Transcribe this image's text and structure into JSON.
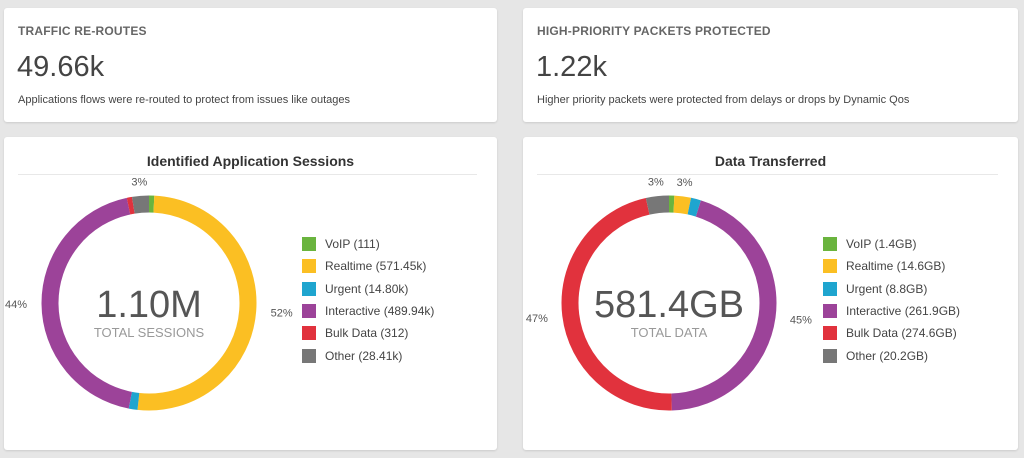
{
  "kpis": [
    {
      "title": "TRAFFIC RE-ROUTES",
      "value": "49.66k",
      "description": "Applications flows were re-routed to protect from issues like outages"
    },
    {
      "title": "HIGH-PRIORITY PACKETS PROTECTED",
      "value": "1.22k",
      "description": "Higher priority packets were protected from delays or drops by Dynamic Qos"
    }
  ],
  "colors": {
    "voip": "#6ab43e",
    "realtime": "#fbbf23",
    "urgent": "#1fa5cf",
    "interactive": "#9c4399",
    "bulk": "#e1323d",
    "other": "#777777"
  },
  "sessions": {
    "title": "Identified Application Sessions",
    "center_value": "1.10M",
    "center_label": "TOTAL SESSIONS",
    "legend": [
      {
        "label": "VoIP (111)",
        "color": "#6ab43e"
      },
      {
        "label": "Realtime (571.45k)",
        "color": "#fbbf23"
      },
      {
        "label": "Urgent (14.80k)",
        "color": "#1fa5cf"
      },
      {
        "label": "Interactive (489.94k)",
        "color": "#9c4399"
      },
      {
        "label": "Bulk Data (312)",
        "color": "#e1323d"
      },
      {
        "label": "Other (28.41k)",
        "color": "#777777"
      }
    ]
  },
  "data_transferred": {
    "title": "Data Transferred",
    "center_value": "581.4GB",
    "center_label": "TOTAL DATA",
    "legend": [
      {
        "label": "VoIP (1.4GB)",
        "color": "#6ab43e"
      },
      {
        "label": "Realtime (14.6GB)",
        "color": "#fbbf23"
      },
      {
        "label": "Urgent (8.8GB)",
        "color": "#1fa5cf"
      },
      {
        "label": "Interactive (261.9GB)",
        "color": "#9c4399"
      },
      {
        "label": "Bulk Data (274.6GB)",
        "color": "#e1323d"
      },
      {
        "label": "Other (20.2GB)",
        "color": "#777777"
      }
    ]
  },
  "chart_data": [
    {
      "type": "pie",
      "title": "Identified Application Sessions",
      "categories": [
        "VoIP",
        "Realtime",
        "Urgent",
        "Interactive",
        "Bulk Data",
        "Other"
      ],
      "values": [
        111,
        571450,
        14800,
        489940,
        312,
        28410
      ],
      "slice_labels": [
        "",
        "52%",
        "",
        "44%",
        "",
        "3%"
      ],
      "colors": [
        "#6ab43e",
        "#fbbf23",
        "#1fa5cf",
        "#9c4399",
        "#e1323d",
        "#777777"
      ]
    },
    {
      "type": "pie",
      "title": "Data Transferred",
      "categories": [
        "VoIP",
        "Realtime",
        "Urgent",
        "Interactive",
        "Bulk Data",
        "Other"
      ],
      "values": [
        1.4,
        14.6,
        8.8,
        261.9,
        274.6,
        20.2
      ],
      "slice_labels": [
        "",
        "3%",
        "",
        "45%",
        "47%",
        "3%"
      ],
      "colors": [
        "#6ab43e",
        "#fbbf23",
        "#1fa5cf",
        "#9c4399",
        "#e1323d",
        "#777777"
      ]
    }
  ]
}
